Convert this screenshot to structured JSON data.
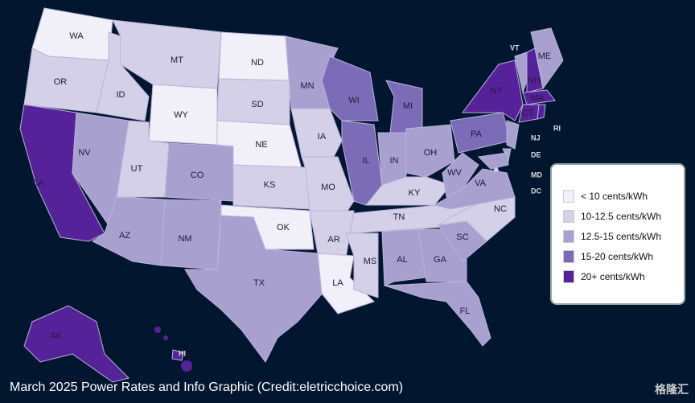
{
  "legend": {
    "items": [
      {
        "label": "< 10 cents/kWh",
        "color": "#f1eff8"
      },
      {
        "label": "10-12.5 cents/kWh",
        "color": "#d3d0e8"
      },
      {
        "label": "12.5-15 cents/kWh",
        "color": "#a8a1d0"
      },
      {
        "label": "15-20 cents/kWh",
        "color": "#7c6cb8"
      },
      {
        "label": "20+ cents/kWh",
        "color": "#56229a"
      }
    ]
  },
  "states": [
    {
      "code": "WA",
      "level": 0
    },
    {
      "code": "OR",
      "level": 1
    },
    {
      "code": "CA",
      "level": 4
    },
    {
      "code": "NV",
      "level": 2
    },
    {
      "code": "ID",
      "level": 1
    },
    {
      "code": "MT",
      "level": 1
    },
    {
      "code": "WY",
      "level": 0
    },
    {
      "code": "UT",
      "level": 1
    },
    {
      "code": "AZ",
      "level": 2
    },
    {
      "code": "CO",
      "level": 2
    },
    {
      "code": "NM",
      "level": 2
    },
    {
      "code": "ND",
      "level": 0
    },
    {
      "code": "SD",
      "level": 1
    },
    {
      "code": "NE",
      "level": 0
    },
    {
      "code": "KS",
      "level": 1
    },
    {
      "code": "OK",
      "level": 0
    },
    {
      "code": "TX",
      "level": 2
    },
    {
      "code": "MN",
      "level": 2
    },
    {
      "code": "IA",
      "level": 1
    },
    {
      "code": "MO",
      "level": 1
    },
    {
      "code": "AR",
      "level": 1
    },
    {
      "code": "LA",
      "level": 0
    },
    {
      "code": "WI",
      "level": 3
    },
    {
      "code": "IL",
      "level": 3
    },
    {
      "code": "MI",
      "level": 3
    },
    {
      "code": "IN",
      "level": 2
    },
    {
      "code": "OH",
      "level": 2
    },
    {
      "code": "KY",
      "level": 1
    },
    {
      "code": "TN",
      "level": 1
    },
    {
      "code": "MS",
      "level": 1
    },
    {
      "code": "AL",
      "level": 2
    },
    {
      "code": "GA",
      "level": 2
    },
    {
      "code": "FL",
      "level": 2
    },
    {
      "code": "SC",
      "level": 2
    },
    {
      "code": "NC",
      "level": 1
    },
    {
      "code": "VA",
      "level": 2
    },
    {
      "code": "WV",
      "level": 2
    },
    {
      "code": "PA",
      "level": 3
    },
    {
      "code": "NY",
      "level": 4
    },
    {
      "code": "VT",
      "level": 2
    },
    {
      "code": "NH",
      "level": 4
    },
    {
      "code": "ME",
      "level": 2
    },
    {
      "code": "MA",
      "level": 4
    },
    {
      "code": "CT",
      "level": 4
    },
    {
      "code": "RI",
      "level": 4
    },
    {
      "code": "NJ",
      "level": 2
    },
    {
      "code": "DE",
      "level": 2
    },
    {
      "code": "MD",
      "level": 2
    },
    {
      "code": "DC",
      "level": 1
    },
    {
      "code": "AK",
      "level": 4
    },
    {
      "code": "HI",
      "level": 4
    }
  ],
  "caption": "March 2025 Power Rates and Info Graphic (Credit:eletricchoice.com)",
  "watermark": "格隆汇"
}
